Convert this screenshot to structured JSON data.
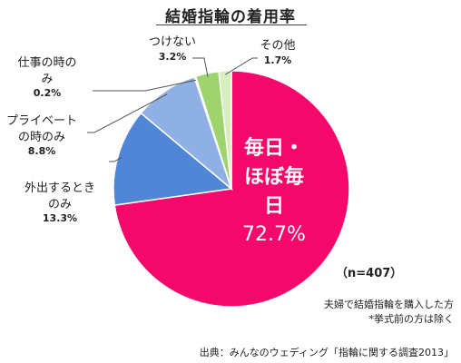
{
  "title": "結婚指輪の着用率",
  "sample_size": "（n=407）",
  "notes": [
    "夫婦で結婚指輪を購入した方",
    "*挙式前の方は除く"
  ],
  "source": "出典：みんなのウェディング「指輪に関する調査2013」",
  "colors": {
    "daily": "#f5086c",
    "outing": "#4f86d6",
    "private": "#8fb0e4",
    "work": "#cfdcf1",
    "notworn": "#9fd36e",
    "other": "#d6edbd"
  },
  "chart_data": {
    "type": "pie",
    "title": "結婚指輪の着用率",
    "unit": "%",
    "slices": [
      {
        "key": "daily",
        "label": "毎日・ほぼ毎日",
        "label_lines": [
          "毎日・",
          "ほぼ毎",
          "日"
        ],
        "value": 72.7,
        "value_label": "72.7%"
      },
      {
        "key": "outing",
        "label": "外出するときのみ",
        "label_lines": [
          "外出するとき",
          "のみ"
        ],
        "value": 13.3,
        "value_label": "13.3%"
      },
      {
        "key": "private",
        "label": "プライベートの時のみ",
        "label_lines": [
          "プライベート",
          "の時のみ"
        ],
        "value": 8.8,
        "value_label": "8.8%"
      },
      {
        "key": "work",
        "label": "仕事の時のみ",
        "label_lines": [
          "仕事の時の",
          "み"
        ],
        "value": 0.2,
        "value_label": "0.2%"
      },
      {
        "key": "notworn",
        "label": "つけない",
        "label_lines": [
          "つけない"
        ],
        "value": 3.2,
        "value_label": "3.2%"
      },
      {
        "key": "other",
        "label": "その他",
        "label_lines": [
          "その他"
        ],
        "value": 1.7,
        "value_label": "1.7%"
      }
    ]
  }
}
